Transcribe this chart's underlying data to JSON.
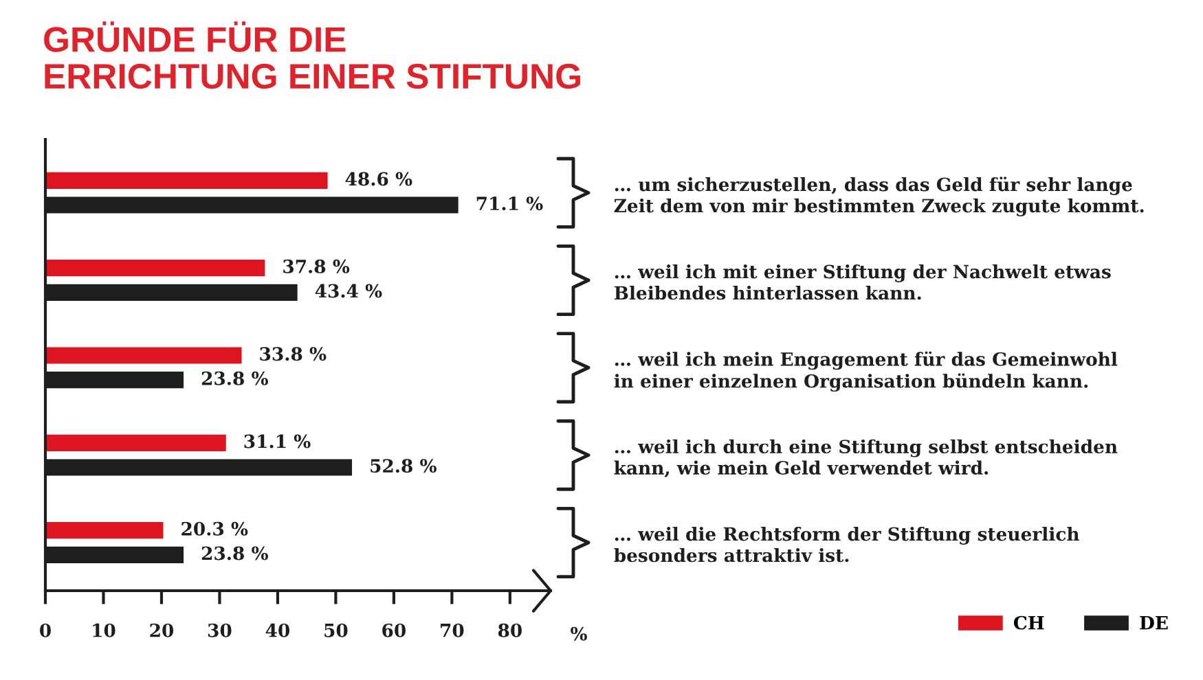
{
  "chart_data": {
    "type": "bar",
    "orientation": "horizontal",
    "title": "GRÜNDE FÜR DIE\nERRICHTUNG EINER STIFTUNG",
    "xlabel": "%",
    "categories": [
      "… um sicherzustellen, dass das Geld für sehr lange\nZeit dem von mir bestimmten Zweck zugute kommt.",
      "… weil ich mit einer Stiftung der Nachwelt etwas\nBleibendes hinterlassen kann.",
      "… weil ich mein Engagement für das Gemeinwohl\nin einer einzelnen Organisation bündeln kann.",
      "… weil ich durch eine Stiftung selbst entscheiden\nkann, wie mein Geld verwendet wird.",
      "… weil die Rechtsform der Stiftung steuerlich\nbesonders attraktiv ist."
    ],
    "series": [
      {
        "name": "CH",
        "color": "#dd1520",
        "values": [
          48.6,
          37.8,
          33.8,
          31.1,
          20.3
        ],
        "value_labels": [
          "48.6 %",
          "37.8 %",
          "33.8 %",
          "31.1 %",
          "20.3 %"
        ]
      },
      {
        "name": "DE",
        "color": "#1e1e1e",
        "values": [
          71.1,
          43.4,
          23.8,
          52.8,
          23.8
        ],
        "value_labels": [
          "71.1 %",
          "43.4 %",
          "23.8 %",
          "52.8 %",
          "23.8 %"
        ]
      }
    ],
    "xlim": [
      0,
      87
    ],
    "xticks": [
      0,
      10,
      20,
      30,
      40,
      50,
      60,
      70,
      80
    ],
    "legend": "bottom right"
  }
}
